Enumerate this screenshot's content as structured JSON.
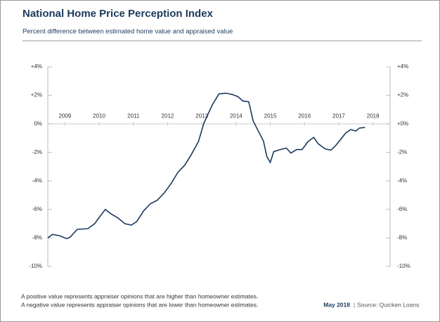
{
  "chart_data": {
    "type": "line",
    "title": "National Home Price Perception Index",
    "subtitle": "Percent difference between estimated home value and appraised value",
    "x": [
      2008.5,
      2008.64,
      2008.85,
      2009.05,
      2009.15,
      2009.36,
      2009.67,
      2009.87,
      2010.02,
      2010.18,
      2010.34,
      2010.55,
      2010.75,
      2010.94,
      2011.1,
      2011.3,
      2011.5,
      2011.7,
      2011.9,
      2012.1,
      2012.3,
      2012.5,
      2012.67,
      2012.9,
      2013.06,
      2013.3,
      2013.5,
      2013.7,
      2013.9,
      2014.06,
      2014.2,
      2014.37,
      2014.5,
      2014.67,
      2014.8,
      2014.9,
      2015.0,
      2015.1,
      2015.3,
      2015.47,
      2015.6,
      2015.77,
      2015.93,
      2016.1,
      2016.27,
      2016.4,
      2016.6,
      2016.77,
      2016.9,
      2017.07,
      2017.2,
      2017.35,
      2017.5,
      2017.6,
      2017.77
    ],
    "series": [
      {
        "name": "Index",
        "color": "#1b3a5c",
        "values": [
          -8.0,
          -7.75,
          -7.85,
          -8.05,
          -7.95,
          -7.4,
          -7.35,
          -7.0,
          -6.5,
          -6.0,
          -6.3,
          -6.6,
          -7.0,
          -7.1,
          -6.85,
          -6.1,
          -5.6,
          -5.35,
          -4.85,
          -4.2,
          -3.4,
          -2.9,
          -2.25,
          -1.25,
          0.05,
          1.3,
          2.1,
          2.15,
          2.05,
          1.9,
          1.6,
          1.55,
          0.2,
          -0.6,
          -1.2,
          -2.3,
          -2.7,
          -1.95,
          -1.8,
          -1.7,
          -2.05,
          -1.8,
          -1.8,
          -1.25,
          -0.95,
          -1.4,
          -1.75,
          -1.85,
          -1.55,
          -1.05,
          -0.65,
          -0.4,
          -0.5,
          -0.3,
          -0.25
        ]
      }
    ],
    "xlim": [
      2008.5,
      2018.5
    ],
    "xticks": [
      2009,
      2010,
      2011,
      2012,
      2013,
      2014,
      2015,
      2016,
      2017,
      2018
    ],
    "ylim": [
      -10,
      4
    ],
    "yticks": [
      {
        "value": 4,
        "label": "+4%"
      },
      {
        "value": 2,
        "label": "+2%"
      },
      {
        "value": 0,
        "label": "0%"
      },
      {
        "value": -2,
        "label": "-2%"
      },
      {
        "value": -4,
        "label": "-4%"
      },
      {
        "value": -6,
        "label": "-6%"
      },
      {
        "value": -8,
        "label": "-8%"
      },
      {
        "value": -10,
        "label": "-10%"
      }
    ],
    "y2lim": [
      -10,
      4
    ],
    "y2ticks": [
      {
        "value": 4,
        "label": "+4%"
      },
      {
        "value": 2,
        "label": "+2%"
      },
      {
        "value": 0,
        "label": "+0%"
      },
      {
        "value": -2,
        "label": "-2%"
      },
      {
        "value": -4,
        "label": "-4%"
      },
      {
        "value": -6,
        "label": "-6%"
      },
      {
        "value": -8,
        "label": "-8%"
      },
      {
        "value": -10,
        "label": "-10%"
      }
    ],
    "grid": false,
    "notes": [
      "A positive value represents appraiser opinions that are higher than homeowner estimates.",
      "A negative value represents appraiser opinions that are lower than homeowner estimates."
    ],
    "date": "May 2018",
    "source": "Source: Quicken Loans"
  }
}
